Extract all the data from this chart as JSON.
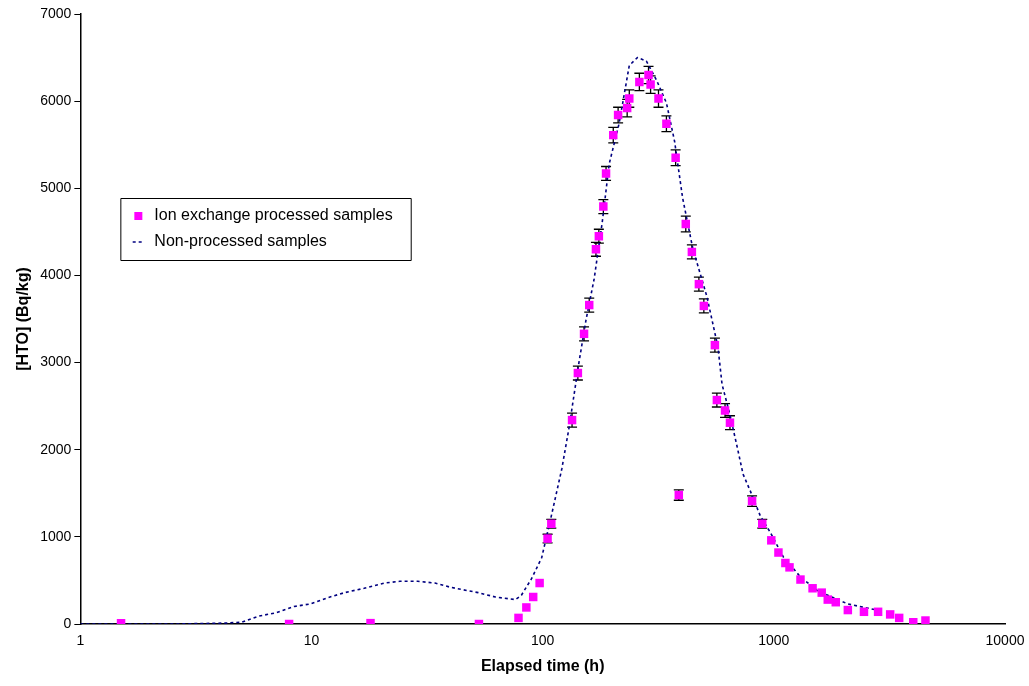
{
  "chart_data": {
    "type": "scatter",
    "xlabel": "Elapsed time (h)",
    "ylabel": "[HTO] (Bq/kg)",
    "log": "x",
    "xlim": [
      1,
      10000
    ],
    "xticks": [
      1,
      10,
      100,
      1000,
      10000
    ],
    "ylim": [
      0,
      7000
    ],
    "yticks": [
      0,
      1000,
      2000,
      3000,
      4000,
      5000,
      6000,
      7000
    ],
    "grid": false,
    "legend": "top left",
    "marker": "square",
    "series": [
      {
        "name": "Ion exchange processed samples",
        "color": "#ff00ff",
        "x": [
          1.5,
          8,
          18,
          53,
          78.6,
          85,
          91,
          97,
          105,
          109,
          134,
          142,
          151,
          159,
          170,
          175,
          183,
          188,
          202,
          212,
          232,
          237,
          262,
          287,
          293,
          317,
          343,
          376,
          388,
          416,
          442,
          474,
          498,
          556,
          567,
          615,
          646,
          805,
          891,
          975,
          1047,
          1122,
          1169,
          1304,
          1471,
          1611,
          1711,
          1853,
          2090,
          2454,
          2825,
          3186,
          3485,
          4010,
          4528
        ],
        "values": [
          10,
          0,
          10,
          0,
          70,
          190,
          310,
          470,
          980,
          1150,
          2340,
          2880,
          3330,
          3660,
          4300,
          4450,
          4790,
          5170,
          5610,
          5840,
          5920,
          6030,
          6220,
          6300,
          6190,
          6030,
          5740,
          5350,
          1480,
          4590,
          4270,
          3900,
          3650,
          3200,
          2570,
          2450,
          2310,
          1410,
          1150,
          960,
          820,
          700,
          650,
          510,
          410,
          360,
          280,
          250,
          160,
          140,
          140,
          110,
          70,
          20,
          40
        ],
        "errors": [
          null,
          null,
          null,
          null,
          null,
          null,
          null,
          null,
          50,
          50,
          80,
          80,
          80,
          80,
          80,
          80,
          80,
          80,
          90,
          90,
          100,
          100,
          100,
          100,
          100,
          100,
          90,
          90,
          60,
          90,
          80,
          80,
          80,
          80,
          80,
          80,
          80,
          60,
          50,
          null,
          null,
          null,
          null,
          null,
          null,
          null,
          null,
          null,
          null,
          null,
          null,
          null,
          null,
          null,
          null
        ]
      },
      {
        "name": "Non-processed samples",
        "type": "line",
        "color": "#000080",
        "line_style": "dashed",
        "marker": "none",
        "x": [
          1,
          1.46,
          2.59,
          4.16,
          4.98,
          5.9,
          7.07,
          8.39,
          9.85,
          11.7,
          13.9,
          16.9,
          20.7,
          24.1,
          28.8,
          34.2,
          40.1,
          52.6,
          62.4,
          76.2,
          80.9,
          89.5,
          99,
          109,
          121,
          130,
          143.5,
          154,
          167,
          181,
          194,
          214,
          237,
          257,
          281,
          311,
          343,
          372,
          403,
          446,
          513,
          573,
          597,
          646,
          693,
          736,
          790,
          874,
          966,
          1099,
          1304,
          1549,
          2090,
          2911
        ],
        "values": [
          0,
          0,
          0,
          10,
          20,
          90,
          130,
          200,
          230,
          300,
          360,
          410,
          470,
          490,
          490,
          470,
          420,
          360,
          310,
          280,
          330,
          520,
          760,
          1240,
          1780,
          2250,
          3000,
          3490,
          3960,
          4610,
          5280,
          5740,
          6410,
          6500,
          6460,
          6240,
          5980,
          5540,
          4890,
          4310,
          3760,
          3180,
          2750,
          2400,
          2040,
          1720,
          1530,
          1240,
          1050,
          770,
          540,
          380,
          230,
          150
        ]
      }
    ]
  }
}
